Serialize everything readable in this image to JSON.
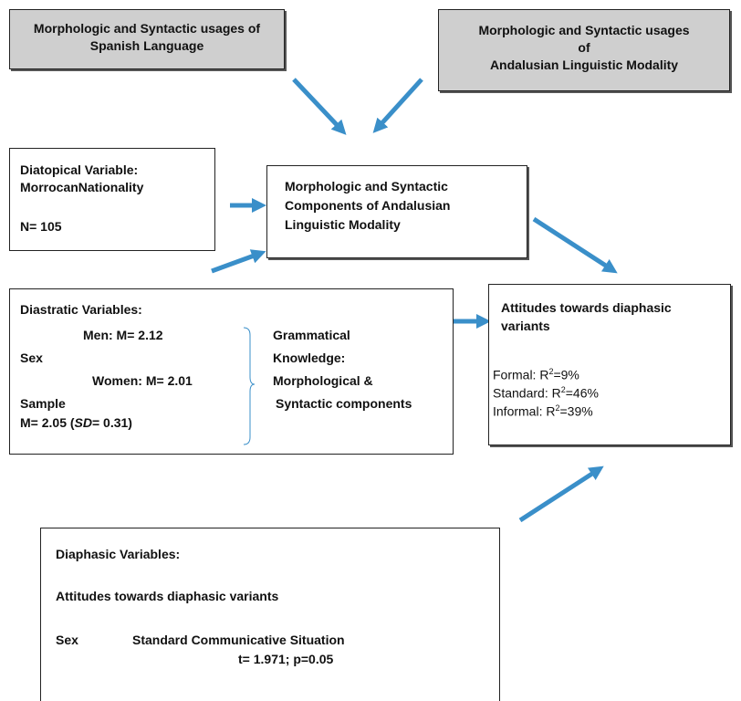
{
  "spanish_box": {
    "line1": "Morphologic and Syntactic usages of",
    "line2": "Spanish Language"
  },
  "andalusian_usages_box": {
    "line1": "Morphologic and Syntactic usages",
    "line2": "of",
    "line3": "Andalusian Linguistic Modality"
  },
  "diatopical_box": {
    "line1": "Diatopical Variable:",
    "line2": "MorrocanNationality",
    "n": "N= 105"
  },
  "components_box": {
    "line1": "Morphologic and Syntactic",
    "line2": "Components of Andalusian",
    "line3": "Linguistic Modality"
  },
  "diastratic_box": {
    "title": "Diastratic Variables:",
    "men": "Men: M= 2.12",
    "sex": "Sex",
    "women": "Women: M= 2.01",
    "sample": "Sample",
    "sample_m": "M= 2.05 (",
    "sample_sd": "SD",
    "sample_sd_val": "= 0.31)",
    "gk1": "Grammatical",
    "gk2": "Knowledge:",
    "gk3": "Morphological &",
    "gk4": "Syntactic components"
  },
  "attitudes_box": {
    "title1": "Attitudes towards diaphasic",
    "title2": "variants",
    "formal_label": "Formal: R",
    "formal_val": "=9%",
    "standard_label": "Standard: R",
    "standard_val": "=46%",
    "informal_label": "Informal: R",
    "informal_val": "=39%",
    "sup": "2"
  },
  "diaphasic_box": {
    "title": "Diaphasic Variables:",
    "subtitle": "Attitudes towards diaphasic variants",
    "sex": "Sex",
    "situation": "Standard Communicative Situation",
    "stat": "t= 1.971; p=0.05"
  },
  "colors": {
    "arrow": "#3a8fc9",
    "gray_box": "#cfcfcf"
  }
}
